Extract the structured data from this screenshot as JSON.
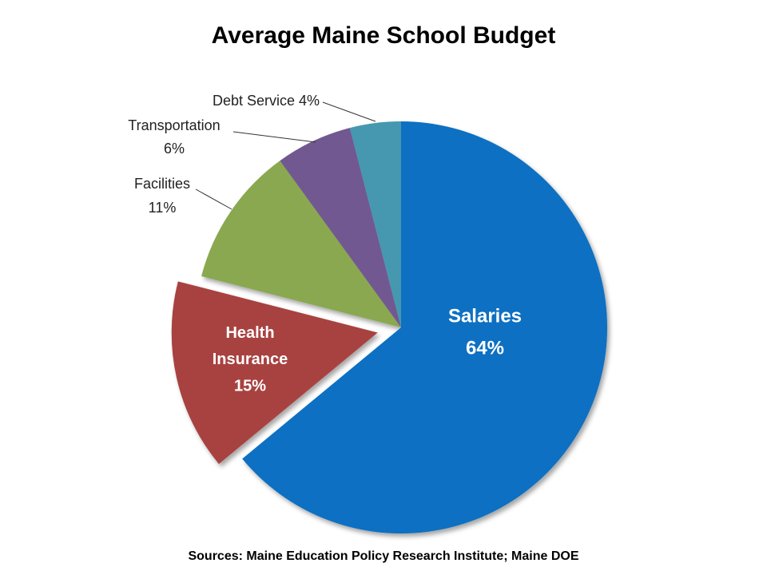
{
  "chart_data": {
    "type": "pie",
    "title": "Average Maine School Budget",
    "source": "Sources:  Maine Education Policy Research Institute; Maine DOE",
    "categories": [
      "Salaries",
      "Health Insurance",
      "Facilities",
      "Transportation",
      "Debt Service"
    ],
    "values": [
      64,
      15,
      11,
      6,
      4
    ],
    "value_labels": [
      "64%",
      "15%",
      "11%",
      "6%",
      "4%"
    ],
    "colors": [
      "#0a6fc2",
      "#a8433f",
      "#8aa84f",
      "#725890",
      "#4498b0"
    ]
  }
}
